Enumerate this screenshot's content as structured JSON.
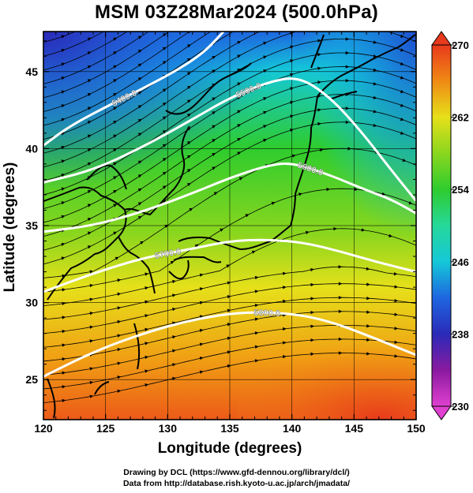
{
  "title": "MSM 03Z28Mar2024 (500.0hPa)",
  "credits": {
    "drawing": "Drawing by DCL (https://www.gfd-dennou.org/library/dcl/)",
    "data": "Data from http://database.rish.kyoto-u.ac.jp/arch/jmadata/"
  },
  "chart_data": {
    "type": "map",
    "xlabel": "Longitude (degrees)",
    "ylabel": "Latitude  (degrees)",
    "xlim": [
      120,
      150
    ],
    "ylim": [
      22.4,
      47.6
    ],
    "xticks": [
      120,
      125,
      130,
      135,
      140,
      145,
      150
    ],
    "yticks": [
      25,
      30,
      35,
      40,
      45
    ],
    "grid": true,
    "colorbar": {
      "min": 230,
      "max": 270,
      "ticks": [
        230,
        238,
        246,
        254,
        262,
        270
      ],
      "extend": "both",
      "stops": [
        {
          "value": 230,
          "color": "#e040d0"
        },
        {
          "value": 234,
          "color": "#8a1aa0"
        },
        {
          "value": 238,
          "color": "#2a2ab8"
        },
        {
          "value": 242,
          "color": "#1e66e0"
        },
        {
          "value": 246,
          "color": "#14c8d8"
        },
        {
          "value": 250,
          "color": "#26d89a"
        },
        {
          "value": 254,
          "color": "#2ecc2e"
        },
        {
          "value": 258,
          "color": "#8ad61e"
        },
        {
          "value": 262,
          "color": "#e6e01a"
        },
        {
          "value": 266,
          "color": "#f08a14"
        },
        {
          "value": 270,
          "color": "#e83a1c"
        }
      ]
    },
    "contours": [
      {
        "label": "5400.0",
        "points": [
          [
            120,
            40.2
          ],
          [
            122,
            41.4
          ],
          [
            125,
            42.7
          ],
          [
            128,
            43.9
          ],
          [
            131,
            45.2
          ],
          [
            133,
            46.3
          ],
          [
            134.5,
            47.6
          ]
        ]
      },
      {
        "label": "5500.0",
        "points": [
          [
            120,
            37.8
          ],
          [
            124,
            38.6
          ],
          [
            128,
            40.1
          ],
          [
            132,
            41.9
          ],
          [
            135,
            43.3
          ],
          [
            138,
            44.3
          ],
          [
            140.5,
            44.7
          ],
          [
            143,
            43.4
          ],
          [
            145.5,
            41.2
          ],
          [
            148,
            38.6
          ],
          [
            150,
            36.6
          ]
        ]
      },
      {
        "label": "5600.0",
        "points": [
          [
            120,
            34.6
          ],
          [
            124,
            35.0
          ],
          [
            128,
            35.9
          ],
          [
            132,
            37.1
          ],
          [
            135,
            38.1
          ],
          [
            138,
            38.9
          ],
          [
            140,
            39.1
          ],
          [
            143,
            38.3
          ],
          [
            146,
            37.3
          ],
          [
            148,
            36.7
          ],
          [
            150,
            35.8
          ]
        ]
      },
      {
        "label": "5700.0",
        "points": [
          [
            120,
            30.7
          ],
          [
            124,
            31.9
          ],
          [
            128,
            32.9
          ],
          [
            132,
            33.5
          ],
          [
            135,
            34.0
          ],
          [
            138,
            34.1
          ],
          [
            141,
            33.9
          ],
          [
            144,
            33.3
          ],
          [
            147,
            32.6
          ],
          [
            150,
            32.0
          ]
        ]
      },
      {
        "label": "5800.0",
        "points": [
          [
            120,
            25.2
          ],
          [
            124,
            26.8
          ],
          [
            128,
            28.0
          ],
          [
            132,
            28.9
          ],
          [
            136,
            29.4
          ],
          [
            140,
            29.3
          ],
          [
            143,
            28.8
          ],
          [
            146,
            27.9
          ],
          [
            150,
            26.6
          ]
        ]
      }
    ]
  }
}
